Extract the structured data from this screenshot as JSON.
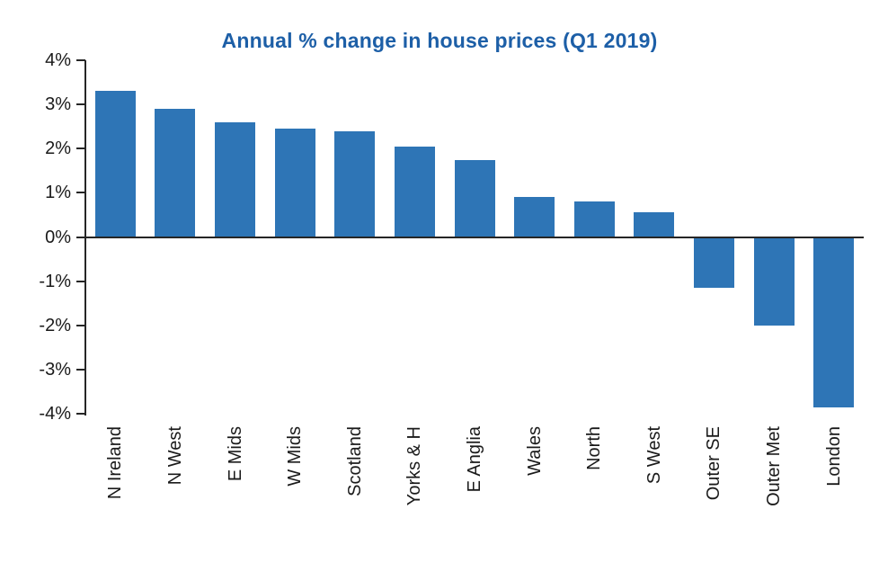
{
  "chart_data": {
    "type": "bar",
    "title": "Annual % change in house prices (Q1 2019)",
    "categories": [
      "N Ireland",
      "N West",
      "E Mids",
      "W Mids",
      "Scotland",
      "Yorks & H",
      "E Anglia",
      "Wales",
      "North",
      "S West",
      "Outer SE",
      "Outer Met",
      "London"
    ],
    "values": [
      3.3,
      2.9,
      2.6,
      2.45,
      2.4,
      2.05,
      1.75,
      0.9,
      0.8,
      0.55,
      -1.15,
      -2.0,
      -3.85
    ],
    "xlabel": "",
    "ylabel": "",
    "ylim": [
      -4,
      4
    ],
    "ytick_step": 1,
    "ytick_labels": [
      "4%",
      "3%",
      "2%",
      "1%",
      "0%",
      "-1%",
      "-2%",
      "-3%",
      "-4%"
    ],
    "grid": false,
    "legend": "none",
    "bar_color": "#2e75b6",
    "title_color": "#1d5fa7",
    "axis_color": "#262626"
  }
}
